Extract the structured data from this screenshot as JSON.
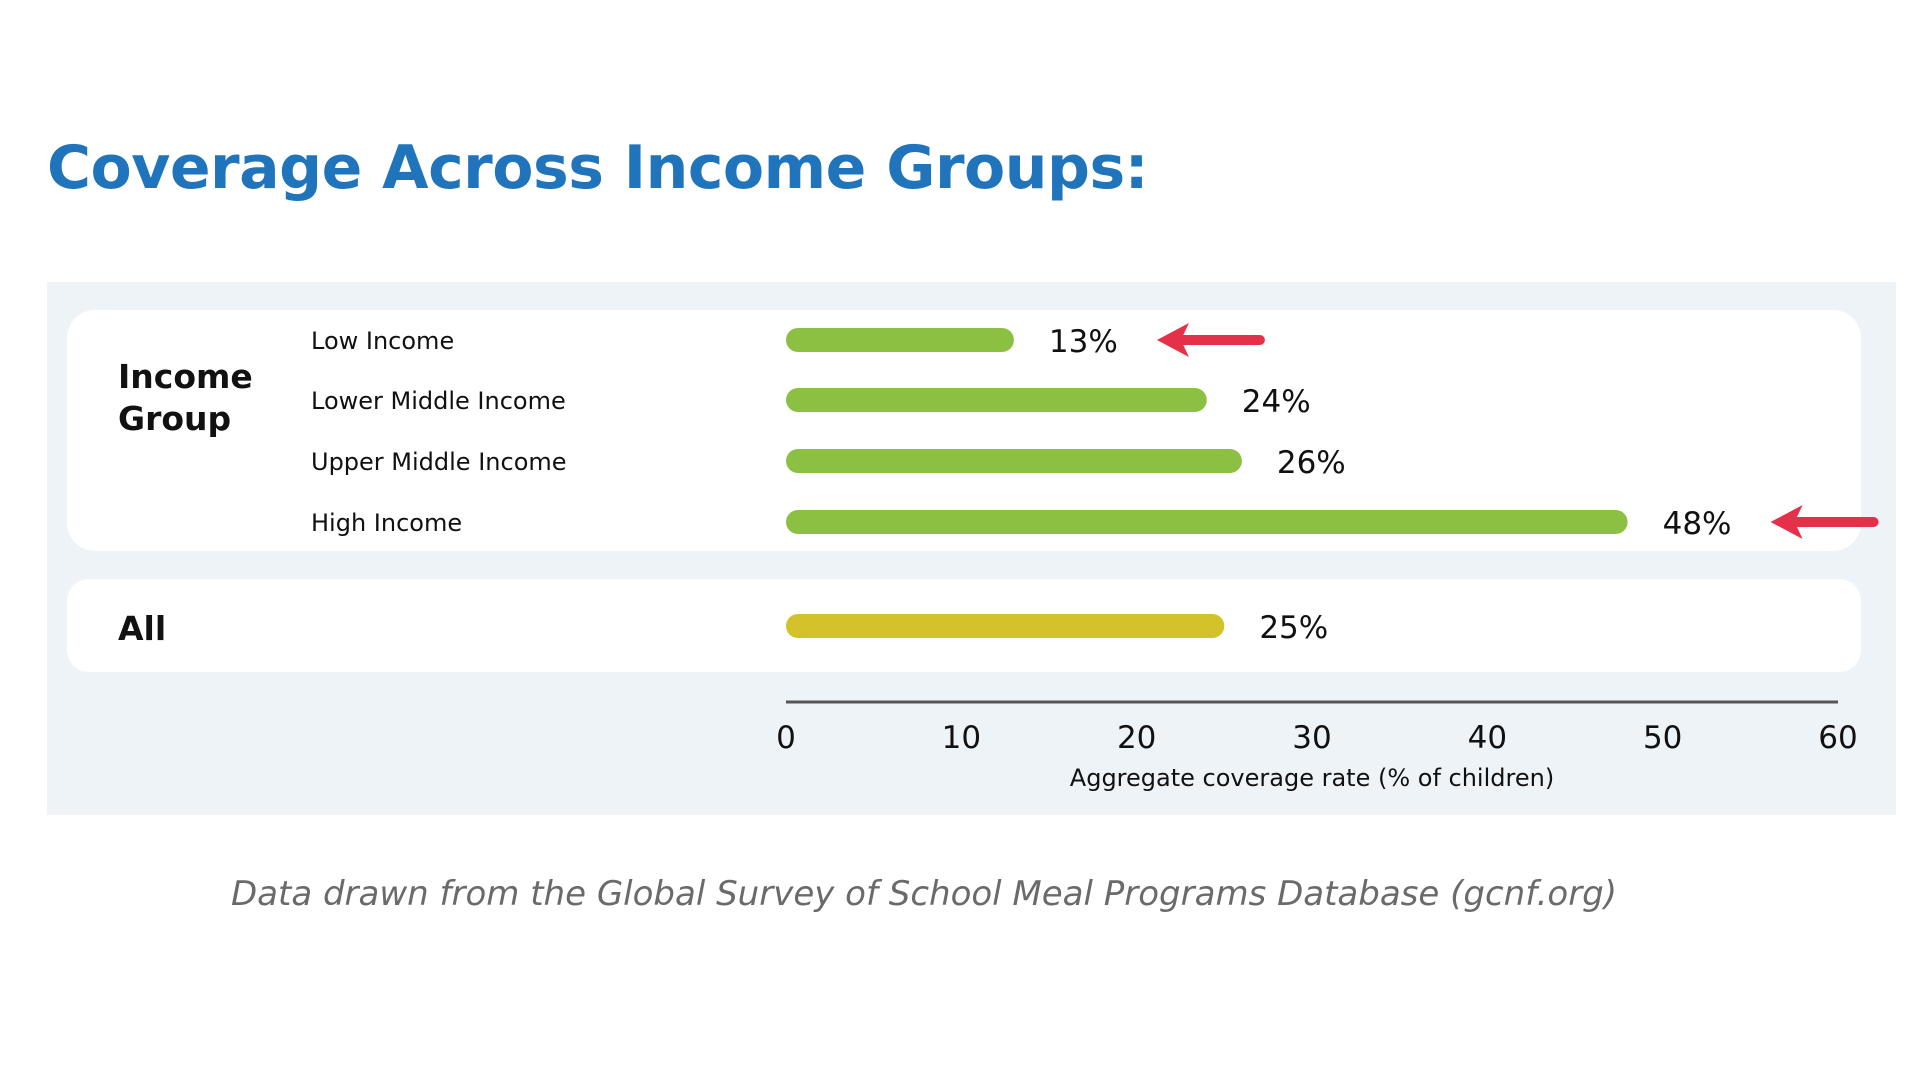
{
  "page": {
    "title": "Coverage Across Income Groups:",
    "caption": "Data drawn from the Global Survey of School Meal Programs Database (gcnf.org)"
  },
  "colors": {
    "title": "#1f74bb",
    "bar_group": "#8bc043",
    "bar_all": "#d4c22a",
    "arrow": "#e5304a",
    "text": "#111111",
    "panel_bg": "#eef3f8",
    "card_bg": "#ffffff",
    "axis": "#555555"
  },
  "chart_data": {
    "type": "bar",
    "orientation": "horizontal",
    "xlim": [
      0,
      60
    ],
    "x_ticks": [
      0,
      10,
      20,
      30,
      40,
      50,
      60
    ],
    "x_tick_labels": [
      "0",
      "10",
      "20",
      "30",
      "40",
      "50",
      "60"
    ],
    "xlabel": "Aggregate coverage rate (% of children)",
    "ylabel": "",
    "grid": false,
    "groups": [
      {
        "group_label_lines": [
          "Income",
          "Group"
        ],
        "bar_color": "#8bc043",
        "categories": [
          "Low Income",
          "Lower Middle Income",
          "Upper Middle Income",
          "High Income"
        ],
        "values": [
          13,
          24,
          26,
          48
        ],
        "value_labels": [
          "13%",
          "24%",
          "26%",
          "48%"
        ],
        "highlighted": [
          true,
          false,
          false,
          true
        ]
      },
      {
        "group_label_lines": [
          "All"
        ],
        "bar_color": "#d4c22a",
        "categories": [
          ""
        ],
        "values": [
          25
        ],
        "value_labels": [
          "25%"
        ],
        "highlighted": [
          false
        ]
      }
    ],
    "annotations": [
      {
        "type": "arrow",
        "points_to": "Low Income",
        "direction": "left",
        "color": "#e5304a"
      },
      {
        "type": "arrow",
        "points_to": "High Income",
        "direction": "left",
        "color": "#e5304a"
      }
    ]
  }
}
